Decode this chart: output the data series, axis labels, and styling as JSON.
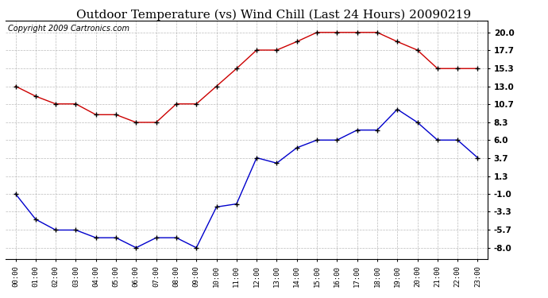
{
  "title": "Outdoor Temperature (vs) Wind Chill (Last 24 Hours) 20090219",
  "copyright": "Copyright 2009 Cartronics.com",
  "hours": [
    "00:00",
    "01:00",
    "02:00",
    "03:00",
    "04:00",
    "05:00",
    "06:00",
    "07:00",
    "08:00",
    "09:00",
    "10:00",
    "11:00",
    "12:00",
    "13:00",
    "14:00",
    "15:00",
    "16:00",
    "17:00",
    "18:00",
    "19:00",
    "20:00",
    "21:00",
    "22:00",
    "23:00"
  ],
  "temp": [
    13.0,
    11.7,
    10.7,
    10.7,
    9.3,
    9.3,
    8.3,
    8.3,
    10.7,
    10.7,
    13.0,
    15.3,
    17.7,
    17.7,
    18.8,
    20.0,
    20.0,
    20.0,
    20.0,
    18.8,
    17.7,
    15.3,
    15.3,
    15.3
  ],
  "windchill": [
    -1.0,
    -4.3,
    -5.7,
    -5.7,
    -6.7,
    -6.7,
    -8.0,
    -6.7,
    -6.7,
    -8.0,
    -2.7,
    -2.3,
    3.7,
    3.0,
    5.0,
    6.0,
    6.0,
    7.3,
    7.3,
    10.0,
    8.3,
    6.0,
    6.0,
    3.7
  ],
  "temp_color": "#cc0000",
  "windchill_color": "#0000cc",
  "bg_color": "#ffffff",
  "grid_color": "#aaaaaa",
  "yticks": [
    20.0,
    17.7,
    15.3,
    13.0,
    10.7,
    8.3,
    6.0,
    3.7,
    1.3,
    -1.0,
    -3.3,
    -5.7,
    -8.0
  ],
  "ylim": [
    -9.5,
    21.5
  ],
  "title_fontsize": 11,
  "copyright_fontsize": 7
}
